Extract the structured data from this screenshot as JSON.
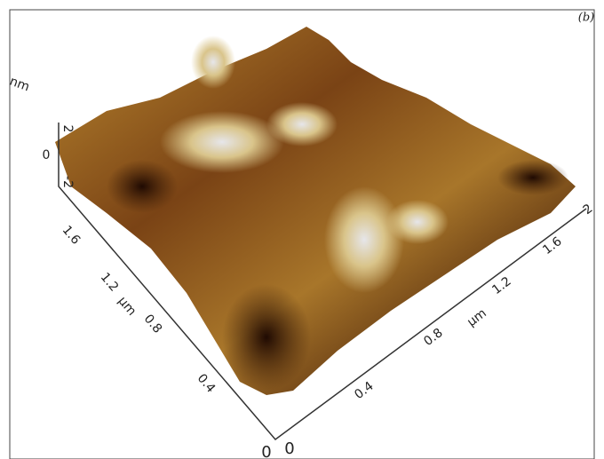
{
  "panel_label": "(b)",
  "z_axis": {
    "unit": "nm",
    "ticks": [
      "2",
      "0",
      "-2"
    ]
  },
  "left_axis": {
    "unit": "μm",
    "ticks": [
      "0",
      "0.4",
      "0.8",
      "1.2",
      "1.6"
    ]
  },
  "right_axis": {
    "unit": "μm",
    "ticks": [
      "0",
      "0.4",
      "0.8",
      "1.2",
      "1.6",
      "2"
    ]
  }
}
